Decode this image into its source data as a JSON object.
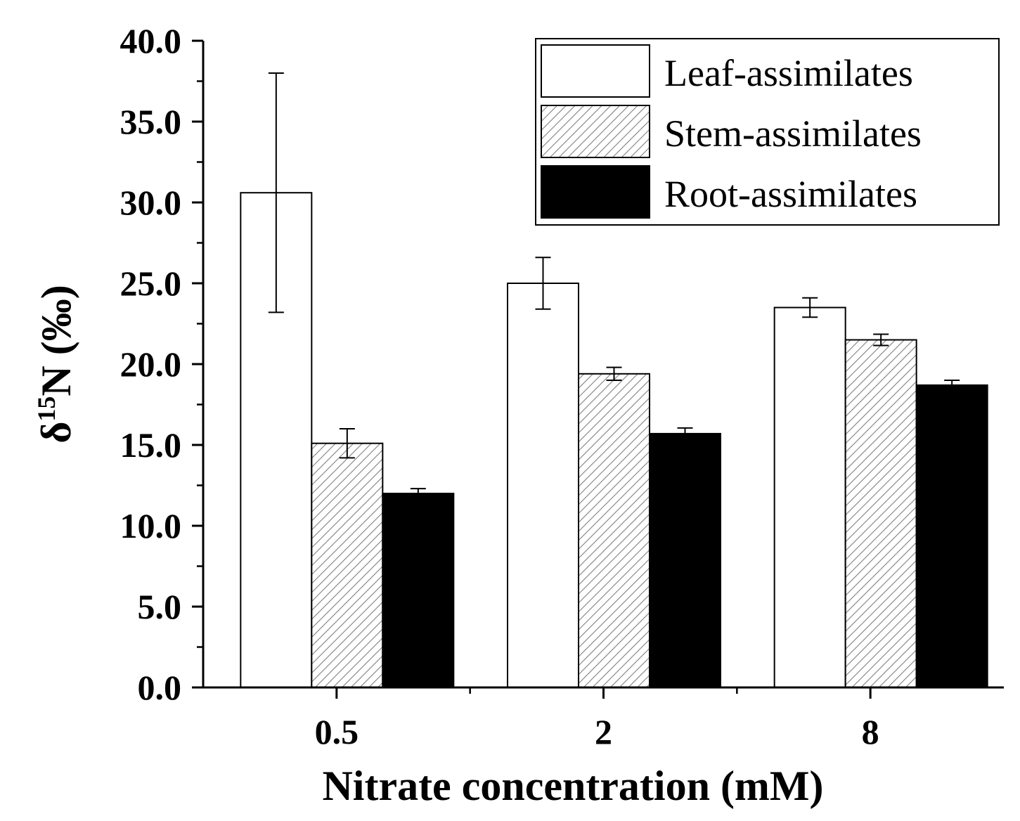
{
  "chart_data": {
    "type": "bar",
    "categories": [
      "0.5",
      "2",
      "8"
    ],
    "series": [
      {
        "name": "Leaf-assimilates",
        "values": [
          30.6,
          25.0,
          23.5
        ],
        "errors": [
          7.4,
          1.6,
          0.6
        ],
        "pattern": "white"
      },
      {
        "name": "Stem-assimilates",
        "values": [
          15.1,
          19.4,
          21.5
        ],
        "errors": [
          0.9,
          0.4,
          0.35
        ],
        "pattern": "hatch"
      },
      {
        "name": "Root-assimilates",
        "values": [
          12.0,
          15.7,
          18.7
        ],
        "errors": [
          0.3,
          0.35,
          0.3
        ],
        "pattern": "black"
      }
    ],
    "title": "",
    "xlabel": "Nitrate concentration (mM)",
    "ylabel_prefix": "δ",
    "ylabel_superscript": "15",
    "ylabel_suffix": "N (‰)",
    "ylim": [
      0,
      40
    ],
    "y_ticks": [
      "0.0",
      "5.0",
      "10.0",
      "15.0",
      "20.0",
      "25.0",
      "30.0",
      "35.0",
      "40.0"
    ],
    "legend_position": "top-right",
    "colors": {
      "hatch_line": "#808080",
      "bar_edge": "#000000",
      "black_fill": "#000000",
      "white_fill": "#ffffff"
    }
  }
}
